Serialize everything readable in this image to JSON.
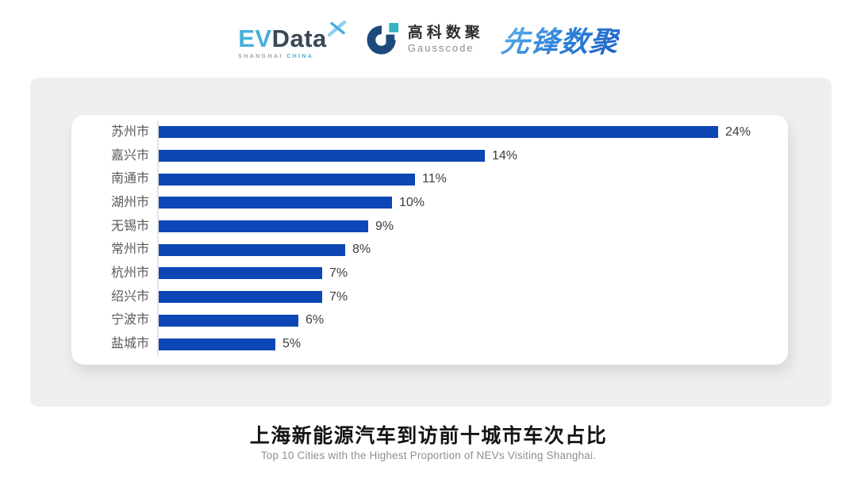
{
  "header": {
    "evdata": {
      "ev": "EV",
      "data": "Data",
      "sub_left": "SHANGHAI",
      "sub_right": "CHINA"
    },
    "gausscode": {
      "name_cn": "高科数聚",
      "name_en": "Gausscode"
    },
    "pioneer": {
      "name": "先锋数聚"
    }
  },
  "chart_data": {
    "type": "bar",
    "orientation": "horizontal",
    "title": "上海新能源汽车到访前十城市车次占比",
    "subtitle": "Top 10 Cities with the Highest Proportion of NEVs Visiting Shanghai.",
    "categories": [
      "苏州市",
      "嘉兴市",
      "南通市",
      "湖州市",
      "无锡市",
      "常州市",
      "杭州市",
      "绍兴市",
      "宁波市",
      "盐城市"
    ],
    "values": [
      24,
      14,
      11,
      10,
      9,
      8,
      7,
      7,
      6,
      5
    ],
    "value_suffix": "%",
    "xlim": [
      0,
      24
    ],
    "grid": false,
    "legend": false,
    "bar_color": "#0d47b5"
  },
  "colors": {
    "bar": "#0d47b5",
    "panel_bg": "#efefef",
    "card_bg": "#ffffff",
    "category_label": "#595959",
    "value_label": "#3d3d3d",
    "axis_line": "#e4e4e4",
    "title": "#141414",
    "subtitle": "#8f8f8f",
    "evdata_blue": "#45b0dd",
    "evdata_dark": "#3a4755",
    "gausscode_navy": "#1d4a7d",
    "gausscode_teal": "#35b2c2",
    "pioneer_blue_light": "#62b4ea",
    "pioneer_blue_dark": "#1c5ec4"
  }
}
